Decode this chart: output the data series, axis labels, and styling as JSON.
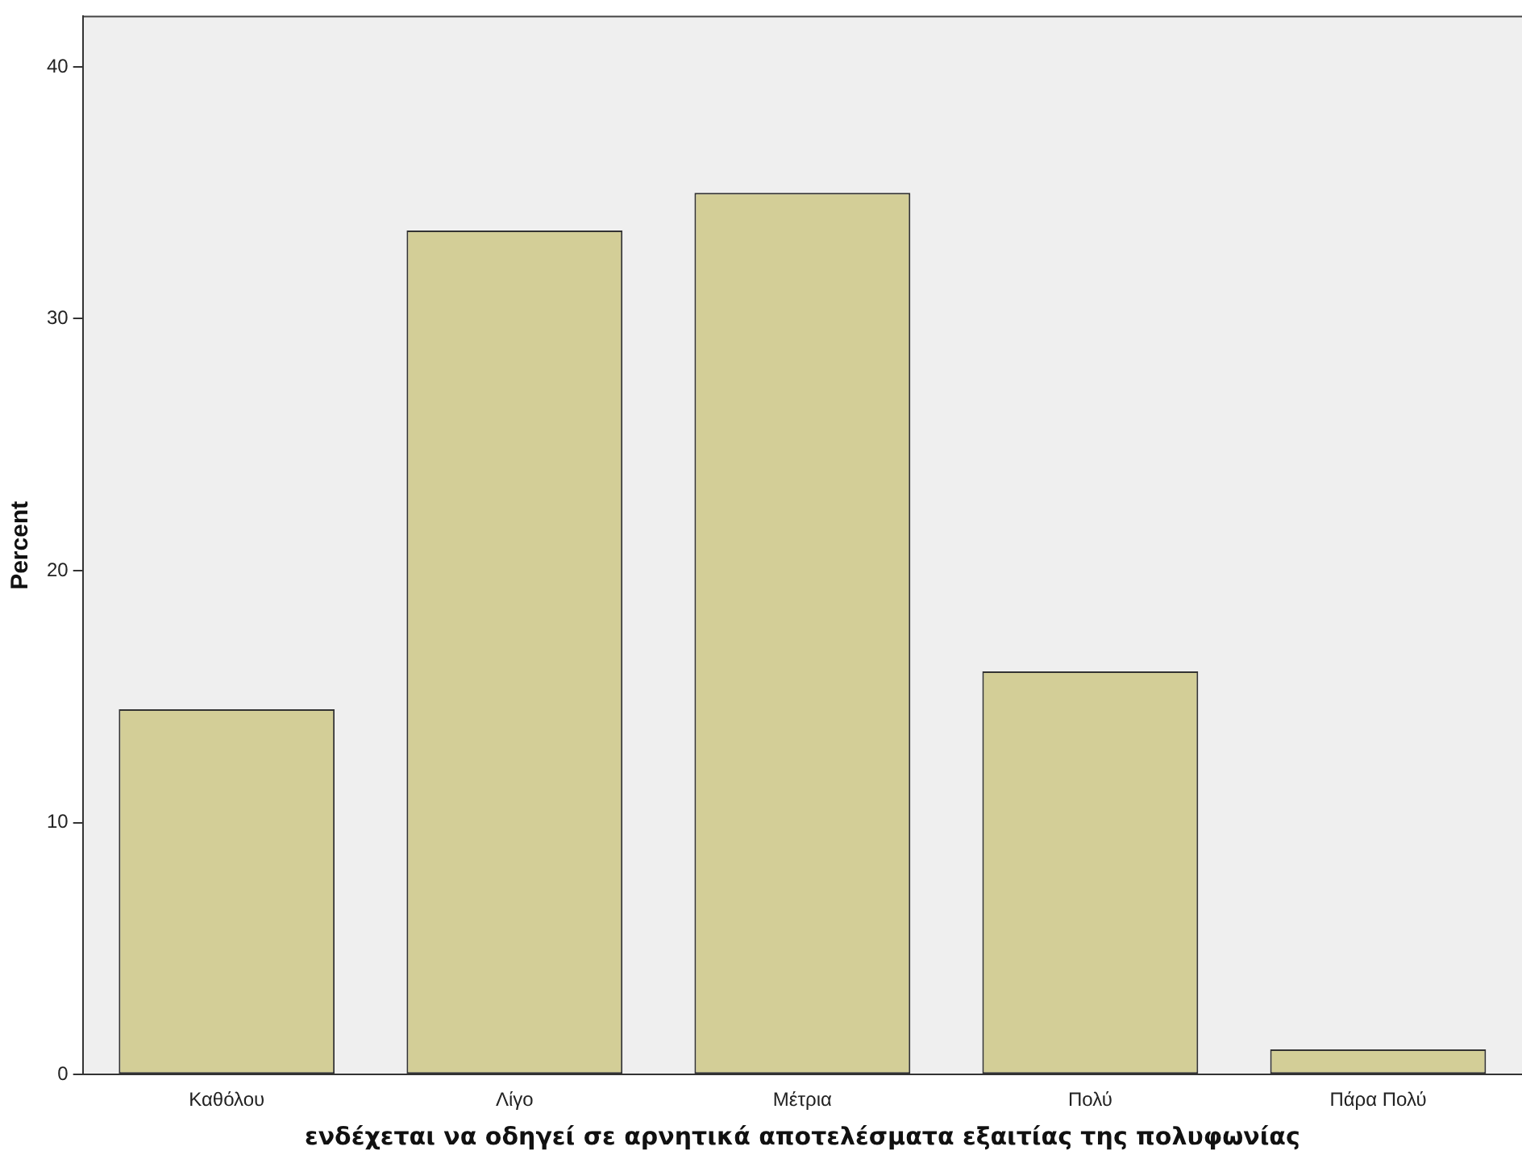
{
  "chart_data": {
    "type": "bar",
    "xlabel": "ενδέχεται να οδηγεί σε αρνητικά αποτελέσματα εξαιτίας της πολυφωνίας",
    "ylabel": "Percent",
    "categories": [
      "Καθόλου",
      "Λίγο",
      "Μέτρια",
      "Πολύ",
      "Πάρα Πολύ"
    ],
    "values": [
      14.5,
      33.5,
      35.0,
      16.0,
      1.0
    ],
    "color": "#d3ce97",
    "ylim": [
      0,
      42
    ],
    "yticks": [
      0,
      10,
      20,
      30,
      40
    ],
    "grid": false,
    "legend": false
  }
}
